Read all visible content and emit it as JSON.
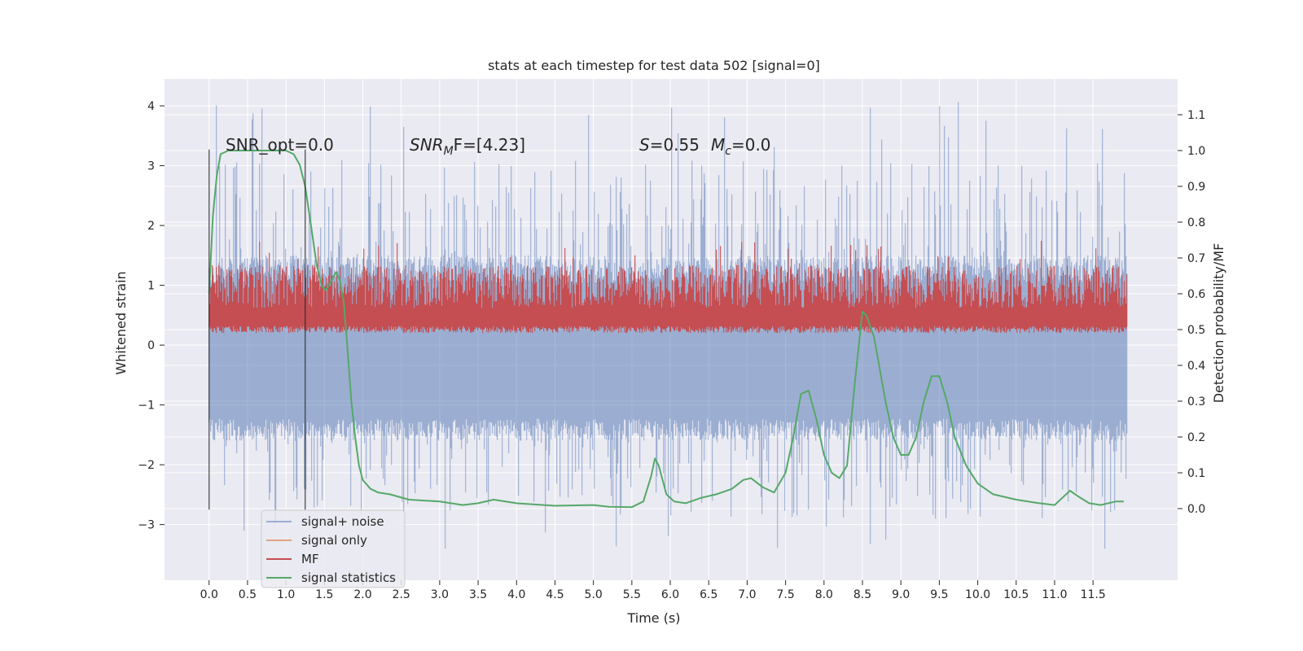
{
  "chart_data": {
    "type": "line",
    "title": "stats at each timestep for test data 502 [signal=0]",
    "xlabel": "Time (s)",
    "ylabel_left": "Whitened strain",
    "ylabel_right": "Detection probability/MF",
    "xlim": [
      -0.58,
      12.6
    ],
    "ylim_left": [
      -3.93,
      4.45
    ],
    "ylim_right": [
      -0.2,
      1.2
    ],
    "x_ticks": [
      "0.0",
      "0.5",
      "1.0",
      "1.5",
      "2.0",
      "2.5",
      "3.0",
      "3.5",
      "4.0",
      "4.5",
      "5.0",
      "5.5",
      "6.0",
      "6.5",
      "7.0",
      "7.5",
      "8.0",
      "8.5",
      "9.0",
      "9.5",
      "10.0",
      "10.5",
      "11.0",
      "11.5"
    ],
    "y_ticks_left": [
      "4",
      "3",
      "2",
      "1",
      "0",
      "−1",
      "−2",
      "−3"
    ],
    "y_ticks_right": [
      "1.1",
      "1.0",
      "0.9",
      "0.8",
      "0.7",
      "0.6",
      "0.5",
      "0.4",
      "0.3",
      "0.2",
      "0.1",
      "0.0"
    ],
    "grid": true,
    "legend_position": "lower-left",
    "colors": {
      "background": "#eaeaf2",
      "grid": "#ffffff",
      "signal_noise": "#4c72b0",
      "signal_only": "#dd8452",
      "mf": "#c44e52",
      "statistics": "#55a868",
      "vline": "#262626"
    },
    "annotations": {
      "snr_opt": "SNR_opt=0.0",
      "snr_mf_main": "SNR",
      "snr_mf_sub": "M",
      "snr_mf_rest": "F=[4.23]",
      "s_label": "S",
      "s_value": "=0.55",
      "mc_label": "M",
      "mc_sub": "c",
      "mc_value": "=0.0"
    },
    "vertical_lines": [
      0.0,
      1.25
    ],
    "series": [
      {
        "name": "signal+ noise",
        "axis": "left",
        "kind": "noise",
        "x_range": [
          0.0,
          11.95
        ],
        "typical_range": [
          -1.6,
          1.5
        ],
        "extreme_range": [
          -3.5,
          4.1
        ]
      },
      {
        "name": "signal only",
        "axis": "left",
        "values": []
      },
      {
        "name": "MF",
        "axis": "right",
        "kind": "noise",
        "x_range": [
          0.0,
          11.95
        ],
        "typical_range": [
          0.5,
          0.68
        ],
        "extreme_range": [
          0.49,
          0.75
        ]
      },
      {
        "name": "signal statistics",
        "axis": "right",
        "points": [
          [
            0.0,
            0.6
          ],
          [
            0.05,
            0.82
          ],
          [
            0.1,
            0.93
          ],
          [
            0.15,
            0.99
          ],
          [
            0.25,
            1.0
          ],
          [
            0.5,
            1.0
          ],
          [
            0.8,
            1.0
          ],
          [
            1.0,
            1.0
          ],
          [
            1.1,
            0.99
          ],
          [
            1.18,
            0.96
          ],
          [
            1.25,
            0.9
          ],
          [
            1.32,
            0.8
          ],
          [
            1.4,
            0.68
          ],
          [
            1.47,
            0.62
          ],
          [
            1.52,
            0.61
          ],
          [
            1.6,
            0.64
          ],
          [
            1.65,
            0.66
          ],
          [
            1.7,
            0.64
          ],
          [
            1.75,
            0.58
          ],
          [
            1.8,
            0.45
          ],
          [
            1.85,
            0.3
          ],
          [
            1.9,
            0.2
          ],
          [
            1.95,
            0.12
          ],
          [
            2.0,
            0.08
          ],
          [
            2.1,
            0.055
          ],
          [
            2.2,
            0.045
          ],
          [
            2.35,
            0.04
          ],
          [
            2.6,
            0.025
          ],
          [
            3.0,
            0.02
          ],
          [
            3.3,
            0.01
          ],
          [
            3.5,
            0.015
          ],
          [
            3.7,
            0.025
          ],
          [
            4.0,
            0.015
          ],
          [
            4.5,
            0.008
          ],
          [
            5.0,
            0.01
          ],
          [
            5.2,
            0.005
          ],
          [
            5.5,
            0.004
          ],
          [
            5.65,
            0.02
          ],
          [
            5.75,
            0.09
          ],
          [
            5.8,
            0.14
          ],
          [
            5.85,
            0.12
          ],
          [
            5.95,
            0.04
          ],
          [
            6.05,
            0.02
          ],
          [
            6.2,
            0.015
          ],
          [
            6.4,
            0.03
          ],
          [
            6.6,
            0.04
          ],
          [
            6.8,
            0.055
          ],
          [
            6.95,
            0.08
          ],
          [
            7.05,
            0.085
          ],
          [
            7.2,
            0.06
          ],
          [
            7.35,
            0.045
          ],
          [
            7.5,
            0.1
          ],
          [
            7.6,
            0.2
          ],
          [
            7.7,
            0.32
          ],
          [
            7.8,
            0.33
          ],
          [
            7.9,
            0.25
          ],
          [
            8.0,
            0.15
          ],
          [
            8.1,
            0.1
          ],
          [
            8.2,
            0.085
          ],
          [
            8.3,
            0.12
          ],
          [
            8.4,
            0.35
          ],
          [
            8.5,
            0.55
          ],
          [
            8.55,
            0.54
          ],
          [
            8.65,
            0.48
          ],
          [
            8.8,
            0.3
          ],
          [
            8.9,
            0.2
          ],
          [
            9.0,
            0.15
          ],
          [
            9.1,
            0.15
          ],
          [
            9.2,
            0.2
          ],
          [
            9.3,
            0.3
          ],
          [
            9.4,
            0.37
          ],
          [
            9.5,
            0.37
          ],
          [
            9.6,
            0.3
          ],
          [
            9.7,
            0.2
          ],
          [
            9.85,
            0.12
          ],
          [
            10.0,
            0.07
          ],
          [
            10.2,
            0.04
          ],
          [
            10.5,
            0.025
          ],
          [
            10.8,
            0.015
          ],
          [
            11.0,
            0.01
          ],
          [
            11.1,
            0.03
          ],
          [
            11.2,
            0.05
          ],
          [
            11.3,
            0.035
          ],
          [
            11.45,
            0.015
          ],
          [
            11.6,
            0.01
          ],
          [
            11.8,
            0.02
          ],
          [
            11.9,
            0.02
          ]
        ]
      }
    ]
  }
}
